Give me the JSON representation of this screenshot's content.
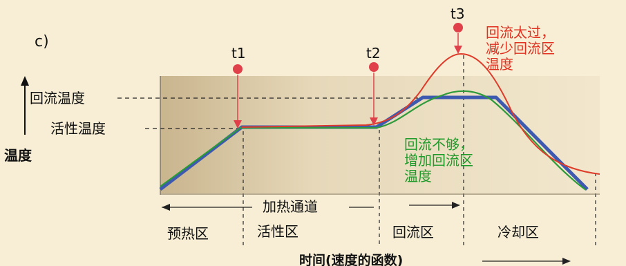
{
  "panel_label": "c)",
  "axis": {
    "y_label": "温度",
    "x_label": "时间(速度的函数)"
  },
  "levels": {
    "reflow_temp": "回流温度",
    "active_temp": "活性温度"
  },
  "markers": [
    "t1",
    "t2",
    "t3"
  ],
  "annotations": {
    "too_much": [
      "回流太过，",
      "减少回流区",
      "温度"
    ],
    "not_enough": [
      "回流不够，",
      "增加回流区",
      "温度"
    ]
  },
  "channel_label": "加热通道",
  "zones": [
    "预热区",
    "活性区",
    "回流区",
    "冷却区"
  ],
  "colors": {
    "background": "#f7eed5",
    "plot_fill": "#e3d6b8",
    "blue_profile": "#3d5ab0",
    "green_profile": "#2f9a3a",
    "red_profile": "#de3b2a",
    "marker": "#e0404a",
    "annotation_red": "#e03020",
    "annotation_green": "#1e9a2a"
  }
}
